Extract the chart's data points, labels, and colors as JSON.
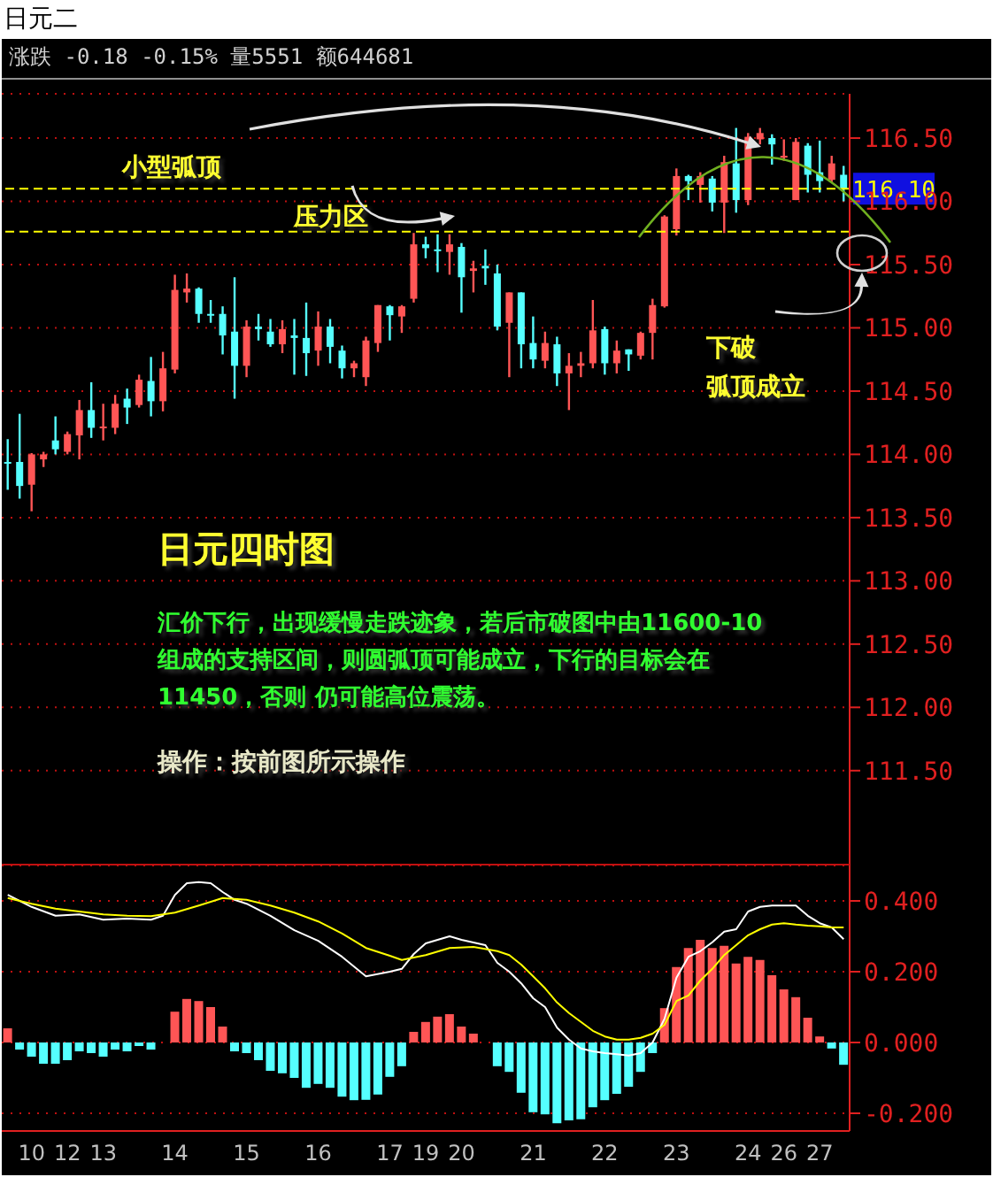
{
  "chart_data": [
    {
      "type": "candlestick",
      "title": "日元二",
      "subtitle": "涨跌 -0.18 -0.15% 量5551 额644681",
      "categories": [
        null,
        null,
        "10",
        null,
        null,
        "12",
        null,
        null,
        "13",
        null,
        null,
        null,
        null,
        null,
        "14",
        null,
        null,
        null,
        null,
        null,
        "15",
        null,
        null,
        null,
        null,
        null,
        "16",
        null,
        null,
        null,
        null,
        null,
        "17",
        null,
        null,
        "19",
        null,
        null,
        "20",
        null,
        null,
        null,
        null,
        null,
        "21",
        null,
        null,
        null,
        null,
        null,
        "22",
        null,
        null,
        null,
        null,
        null,
        "23",
        null,
        null,
        null,
        null,
        null,
        "24",
        null,
        null,
        "26",
        null,
        null,
        "27",
        null,
        null
      ],
      "ohlc": [
        [
          113.94,
          114.12,
          113.72,
          113.93
        ],
        [
          113.94,
          114.32,
          113.65,
          113.75
        ],
        [
          113.76,
          114.01,
          113.55,
          114.0
        ],
        [
          113.96,
          114.02,
          113.9,
          114.0
        ],
        [
          114.11,
          114.3,
          114.0,
          114.04
        ],
        [
          114.02,
          114.18,
          114.0,
          114.16
        ],
        [
          114.15,
          114.43,
          113.96,
          114.35
        ],
        [
          114.35,
          114.57,
          114.13,
          114.21
        ],
        [
          114.21,
          114.4,
          114.11,
          114.22
        ],
        [
          114.21,
          114.47,
          114.16,
          114.4
        ],
        [
          114.44,
          114.52,
          114.24,
          114.37
        ],
        [
          114.39,
          114.63,
          114.37,
          114.59
        ],
        [
          114.58,
          114.77,
          114.3,
          114.42
        ],
        [
          114.42,
          114.81,
          114.34,
          114.68
        ],
        [
          114.67,
          115.42,
          114.64,
          115.3
        ],
        [
          115.28,
          115.43,
          115.2,
          115.31
        ],
        [
          115.31,
          115.32,
          115.04,
          115.11
        ],
        [
          115.11,
          115.22,
          115.04,
          115.1
        ],
        [
          115.11,
          115.17,
          114.79,
          114.94
        ],
        [
          114.97,
          115.4,
          114.44,
          114.7
        ],
        [
          114.7,
          115.06,
          114.61,
          115.01
        ],
        [
          115.01,
          115.11,
          114.9,
          114.99
        ],
        [
          114.97,
          115.07,
          114.85,
          114.87
        ],
        [
          114.87,
          115.06,
          114.8,
          114.99
        ],
        [
          114.94,
          115.07,
          114.63,
          114.92
        ],
        [
          114.92,
          115.2,
          114.62,
          114.8
        ],
        [
          114.82,
          115.13,
          114.7,
          115.01
        ],
        [
          115.01,
          115.07,
          114.72,
          114.85
        ],
        [
          114.82,
          114.86,
          114.6,
          114.68
        ],
        [
          114.68,
          114.74,
          114.61,
          114.72
        ],
        [
          114.61,
          114.93,
          114.54,
          114.9
        ],
        [
          114.88,
          115.18,
          114.81,
          115.18
        ],
        [
          115.17,
          115.18,
          114.9,
          115.1
        ],
        [
          115.09,
          115.18,
          114.96,
          115.17
        ],
        [
          115.23,
          115.75,
          115.2,
          115.66
        ],
        [
          115.66,
          115.72,
          115.55,
          115.63
        ],
        [
          115.62,
          115.74,
          115.44,
          115.61
        ],
        [
          115.6,
          115.74,
          115.42,
          115.66
        ],
        [
          115.64,
          115.67,
          115.12,
          115.4
        ],
        [
          115.45,
          115.53,
          115.28,
          115.47
        ],
        [
          115.49,
          115.62,
          115.34,
          115.47
        ],
        [
          115.43,
          115.5,
          114.98,
          115.01
        ],
        [
          115.04,
          115.28,
          114.61,
          115.28
        ],
        [
          115.28,
          115.28,
          114.68,
          114.87
        ],
        [
          114.88,
          115.09,
          114.68,
          114.75
        ],
        [
          114.74,
          114.97,
          114.68,
          114.88
        ],
        [
          114.87,
          114.93,
          114.54,
          114.64
        ],
        [
          114.64,
          114.8,
          114.35,
          114.7
        ],
        [
          114.7,
          114.81,
          114.61,
          114.72
        ],
        [
          114.72,
          115.22,
          114.68,
          114.98
        ],
        [
          114.99,
          115.01,
          114.63,
          114.72
        ],
        [
          114.72,
          114.9,
          114.64,
          114.82
        ],
        [
          114.83,
          114.83,
          114.66,
          114.79
        ],
        [
          114.78,
          114.97,
          114.75,
          114.96
        ],
        [
          114.96,
          115.23,
          114.75,
          115.18
        ],
        [
          115.17,
          115.89,
          115.16,
          115.88
        ],
        [
          115.78,
          116.26,
          115.73,
          116.2
        ],
        [
          116.2,
          116.21,
          116.01,
          116.16
        ],
        [
          116.13,
          116.23,
          115.99,
          116.2
        ],
        [
          116.18,
          116.2,
          115.92,
          115.99
        ],
        [
          115.99,
          116.36,
          115.75,
          116.31
        ],
        [
          116.3,
          116.58,
          115.91,
          116.01
        ],
        [
          116.01,
          116.54,
          115.97,
          116.51
        ],
        [
          116.49,
          116.58,
          116.45,
          116.54
        ],
        [
          116.5,
          116.53,
          116.29,
          116.45
        ],
        [
          116.35,
          116.49,
          116.32,
          116.36
        ],
        [
          116.01,
          116.5,
          116.01,
          116.47
        ],
        [
          116.44,
          116.46,
          116.07,
          116.21
        ],
        [
          116.23,
          116.48,
          116.07,
          116.16
        ],
        [
          116.17,
          116.36,
          116.15,
          116.3
        ],
        [
          116.21,
          116.28,
          116.0,
          116.1
        ]
      ],
      "ylim": [
        110.75,
        116.85
      ],
      "yticks": [
        {
          "value": 111.5,
          "label": "111.50"
        },
        {
          "value": 112,
          "label": "112.00"
        },
        {
          "value": 112.5,
          "label": "112.50"
        },
        {
          "value": 113,
          "label": "113.00"
        },
        {
          "value": 113.5,
          "label": "113.50"
        },
        {
          "value": 114,
          "label": "114.00"
        },
        {
          "value": 114.5,
          "label": "114.50"
        },
        {
          "value": 115,
          "label": "115.00"
        },
        {
          "value": 115.5,
          "label": "115.50"
        },
        {
          "value": 116,
          "label": "116.00"
        },
        {
          "value": 116.5,
          "label": "116.50"
        }
      ],
      "grid": "y",
      "tick_labels": "y",
      "ref_lines": [
        {
          "axis": "y",
          "value": 116.1,
          "label": "116.10",
          "color": "#ffff00",
          "line_style": "dashed"
        },
        {
          "axis": "y",
          "value": 115.76,
          "label": null,
          "color": "#ffff00",
          "line_style": "dashed"
        }
      ],
      "annotations": [
        "小型弧顶",
        "压力区",
        "下破",
        "弧顶成立",
        "日元四时图",
        "汇价下行，出现缓慢走跌迹象，若后市破图中由11600-10组成的支持区间，则圆弧顶可能成立，下行的目标会在11450，否则 仍可能高位震荡。",
        "操作：按前图所示操作"
      ]
    },
    {
      "type": "bar",
      "categories": [
        null,
        null,
        "10",
        null,
        null,
        "12",
        null,
        null,
        "13",
        null,
        null,
        null,
        null,
        null,
        "14",
        null,
        null,
        null,
        null,
        null,
        "15",
        null,
        null,
        null,
        null,
        null,
        "16",
        null,
        null,
        null,
        null,
        null,
        "17",
        null,
        null,
        "19",
        null,
        null,
        "20",
        null,
        null,
        null,
        null,
        null,
        "21",
        null,
        null,
        null,
        null,
        null,
        "22",
        null,
        null,
        null,
        null,
        null,
        "23",
        null,
        null,
        null,
        null,
        null,
        "24",
        null,
        null,
        "26",
        null,
        null,
        "27",
        null,
        null
      ],
      "series": [
        {
          "type": "bar",
          "values": [
            0.04,
            -0.02,
            -0.04,
            -0.06,
            -0.06,
            -0.05,
            -0.025,
            -0.03,
            -0.04,
            -0.02,
            -0.025,
            -0.01,
            -0.02,
            0,
            0.087,
            0.123,
            0.117,
            0.1,
            0.045,
            -0.025,
            -0.03,
            -0.05,
            -0.08,
            -0.087,
            -0.1,
            -0.128,
            -0.117,
            -0.128,
            -0.153,
            -0.163,
            -0.162,
            -0.147,
            -0.097,
            -0.067,
            0.03,
            0.058,
            0.073,
            0.08,
            0.045,
            0.025,
            0,
            -0.067,
            -0.083,
            -0.142,
            -0.197,
            -0.203,
            -0.228,
            -0.22,
            -0.217,
            -0.183,
            -0.163,
            -0.145,
            -0.125,
            -0.083,
            -0.03,
            0.097,
            0.213,
            0.267,
            0.29,
            0.267,
            0.273,
            0.223,
            0.242,
            0.233,
            0.19,
            0.15,
            0.128,
            0.07,
            0.017,
            -0.017,
            -0.063
          ],
          "colors": [
            "#ff5555",
            "#55ffff",
            "#55ffff",
            "#55ffff",
            "#55ffff",
            "#55ffff",
            "#55ffff",
            "#55ffff",
            "#55ffff",
            "#55ffff",
            "#55ffff",
            "#55ffff",
            "#55ffff",
            "#55ffff",
            "#ff5555",
            "#ff5555",
            "#ff5555",
            "#ff5555",
            "#ff5555",
            "#55ffff",
            "#55ffff",
            "#55ffff",
            "#55ffff",
            "#55ffff",
            "#55ffff",
            "#55ffff",
            "#55ffff",
            "#55ffff",
            "#55ffff",
            "#55ffff",
            "#55ffff",
            "#55ffff",
            "#55ffff",
            "#55ffff",
            "#ff5555",
            "#ff5555",
            "#ff5555",
            "#ff5555",
            "#ff5555",
            "#ff5555",
            "#55ffff",
            "#55ffff",
            "#55ffff",
            "#55ffff",
            "#55ffff",
            "#55ffff",
            "#55ffff",
            "#55ffff",
            "#55ffff",
            "#55ffff",
            "#55ffff",
            "#55ffff",
            "#55ffff",
            "#55ffff",
            "#55ffff",
            "#ff5555",
            "#ff5555",
            "#ff5555",
            "#ff5555",
            "#ff5555",
            "#ff5555",
            "#ff5555",
            "#ff5555",
            "#ff5555",
            "#ff5555",
            "#ff5555",
            "#ff5555",
            "#ff5555",
            "#ff5555",
            "#55ffff",
            "#55ffff"
          ]
        },
        {
          "type": "line",
          "color": "#ffffff",
          "values": [
            0.417,
            null,
            0.383,
            null,
            0.358,
            null,
            0.362,
            null,
            0.347,
            null,
            0.35,
            null,
            0.347,
            0.358,
            0.417,
            0.45,
            0.453,
            0.45,
            0.425,
            0.403,
            0.392,
            null,
            0.358,
            null,
            0.317,
            null,
            0.287,
            null,
            0.242,
            null,
            0.187,
            null,
            0.2,
            0.208,
            0.25,
            0.28,
            null,
            0.3,
            0.29,
            null,
            0.275,
            0.225,
            0.2,
            0.167,
            0.125,
            0.1,
            0.042,
            0.008,
            -0.017,
            -0.025,
            -0.03,
            -0.033,
            -0.037,
            -0.03,
            0,
            0.067,
            0.183,
            0.242,
            0.258,
            0.283,
            0.313,
            0.32,
            0.37,
            0.383,
            0.387,
            0.387,
            0.387,
            0.358,
            0.337,
            0.325,
            0.292
          ]
        },
        {
          "type": "line",
          "color": "#ffff00",
          "values": [
            0.408,
            null,
            0.392,
            null,
            0.378,
            null,
            0.37,
            null,
            0.362,
            null,
            0.358,
            null,
            0.357,
            null,
            0.367,
            null,
            0.387,
            null,
            0.408,
            null,
            0.403,
            null,
            0.387,
            null,
            0.367,
            null,
            0.342,
            null,
            0.308,
            null,
            0.267,
            null,
            0.245,
            0.233,
            null,
            0.247,
            null,
            0.267,
            null,
            0.27,
            null,
            0.258,
            0.247,
            0.22,
            0.187,
            0.153,
            0.113,
            0.083,
            0.058,
            0.033,
            0.017,
            0.008,
            0.008,
            0.013,
            0.025,
            0.05,
            0.117,
            0.133,
            0.175,
            0.208,
            0.247,
            0.275,
            0.303,
            0.32,
            0.333,
            0.337,
            0.333,
            0.33,
            0.328,
            0.325,
            0.325
          ]
        }
      ],
      "ylim": [
        -0.25,
        0.5
      ],
      "yticks": [
        {
          "value": -0.2,
          "label": "-0.200"
        },
        {
          "value": 0,
          "label": "0.000"
        },
        {
          "value": 0.2,
          "label": "0.200"
        },
        {
          "value": 0.4,
          "label": "0.400"
        }
      ],
      "grid": "y"
    }
  ]
}
